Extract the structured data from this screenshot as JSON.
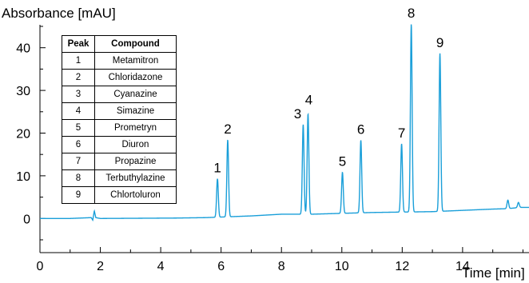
{
  "chart_data": {
    "type": "line",
    "ylabel": "Absorbance [mAU]",
    "xlabel": "Time [min]",
    "xlim": [
      0,
      16.2
    ],
    "ylim": [
      -8,
      45
    ],
    "x_ticks": [
      0,
      2,
      4,
      6,
      8,
      10,
      12,
      14
    ],
    "y_ticks": [
      0,
      10,
      20,
      30,
      40
    ],
    "line_color": "#1a9fd9",
    "baseline": [
      [
        0,
        0
      ],
      [
        1.0,
        0.0
      ],
      [
        1.7,
        0.2
      ],
      [
        1.75,
        -0.4
      ],
      [
        1.8,
        1.8
      ],
      [
        1.85,
        0.2
      ],
      [
        2.0,
        0.0
      ],
      [
        4.5,
        0.1
      ],
      [
        5.5,
        0.2
      ],
      [
        7.0,
        0.6
      ],
      [
        8.0,
        1.0
      ],
      [
        9.0,
        1.0
      ],
      [
        10.0,
        1.2
      ],
      [
        11.0,
        1.4
      ],
      [
        12.0,
        1.5
      ],
      [
        13.0,
        1.6
      ],
      [
        14.0,
        1.9
      ],
      [
        15.0,
        2.2
      ],
      [
        15.5,
        2.3
      ],
      [
        15.9,
        2.6
      ],
      [
        16.2,
        2.6
      ]
    ],
    "peaks": [
      {
        "label": "1",
        "time": 5.88,
        "height": 9.0
      },
      {
        "label": "2",
        "time": 6.22,
        "height": 18.0
      },
      {
        "label": "3",
        "time": 8.72,
        "height": 21.0
      },
      {
        "label": "4",
        "time": 8.88,
        "height": 23.5
      },
      {
        "label": "5",
        "time": 10.02,
        "height": 9.6
      },
      {
        "label": "6",
        "time": 10.63,
        "height": 17.0
      },
      {
        "label": "7",
        "time": 11.98,
        "height": 16.0
      },
      {
        "label": "8",
        "time": 12.3,
        "height": 44.0
      },
      {
        "label": "9",
        "time": 13.25,
        "height": 37.0
      }
    ],
    "small_bumps": [
      {
        "time": 15.5,
        "height": 2.0
      },
      {
        "time": 15.85,
        "height": 1.2
      }
    ]
  },
  "legend": {
    "header_peak": "Peak",
    "header_compound": "Compound",
    "rows": [
      {
        "peak": "1",
        "compound": "Metamitron"
      },
      {
        "peak": "2",
        "compound": "Chloridazone"
      },
      {
        "peak": "3",
        "compound": "Cyanazine"
      },
      {
        "peak": "4",
        "compound": "Simazine"
      },
      {
        "peak": "5",
        "compound": "Prometryn"
      },
      {
        "peak": "6",
        "compound": "Diuron"
      },
      {
        "peak": "7",
        "compound": "Propazine"
      },
      {
        "peak": "8",
        "compound": "Terbuthylazine"
      },
      {
        "peak": "9",
        "compound": "Chlortoluron"
      }
    ]
  }
}
